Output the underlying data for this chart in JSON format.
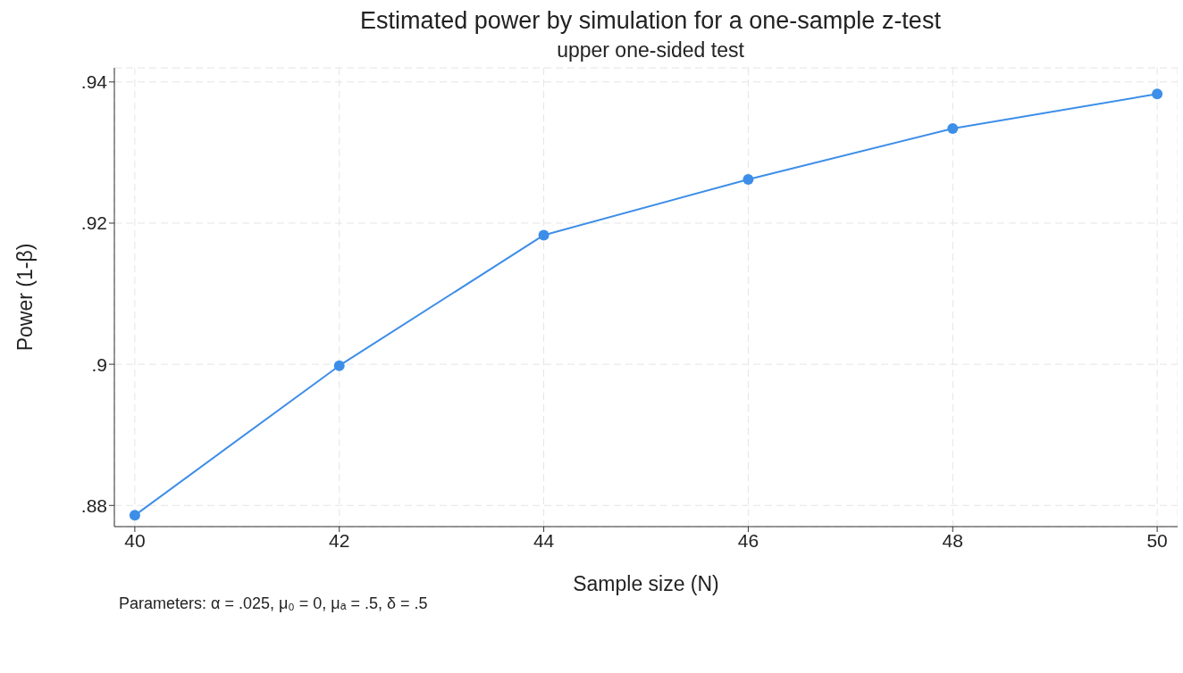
{
  "chart_data": {
    "type": "line",
    "title": "Estimated power by simulation for a one-sample z-test",
    "subtitle": "upper one-sided test",
    "xlabel": "Sample size (N)",
    "ylabel": "Power (1-β)",
    "annotations": [
      "Parameters: α = .025, μ₀ = 0, μₐ = .5, δ = .5"
    ],
    "x": [
      40,
      42,
      44,
      46,
      48,
      50
    ],
    "series": [
      {
        "color": "#3d8ee8",
        "values": [
          0.8786,
          0.8998,
          0.9183,
          0.9262,
          0.9334,
          0.9383
        ]
      }
    ],
    "xlim": [
      39.8,
      50.2
    ],
    "xticks": [
      40,
      42,
      44,
      46,
      48,
      50
    ],
    "ylim": [
      0.877,
      0.942
    ],
    "yticks": [
      {
        "value": 0.88,
        "label": ".88"
      },
      {
        "value": 0.9,
        "label": ".9"
      },
      {
        "value": 0.92,
        "label": ".92"
      },
      {
        "value": 0.94,
        "label": ".94"
      }
    ],
    "grid": true,
    "marker": "circle",
    "line_style": "solid",
    "legend": false
  }
}
